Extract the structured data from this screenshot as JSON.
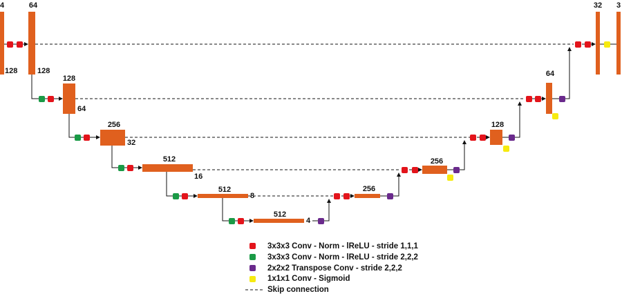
{
  "blocks": [
    {
      "channels": "4",
      "size": "128"
    },
    {
      "channels": "64",
      "size": "128"
    },
    {
      "channels": "128",
      "size": "64"
    },
    {
      "channels": "256",
      "size": "32"
    },
    {
      "channels": "512",
      "size": "16"
    },
    {
      "channels": "512",
      "size": "8"
    },
    {
      "channels": "512",
      "size": "4"
    },
    {
      "channels": "256"
    },
    {
      "channels": "256"
    },
    {
      "channels": "128"
    },
    {
      "channels": "64"
    },
    {
      "channels": "32"
    },
    {
      "channels": "3"
    }
  ],
  "legend": [
    "3x3x3 Conv - Norm - lReLU - stride 1,1,1",
    "3x3x3 Conv - Norm - lReLU - stride 2,2,2",
    "2x2x2 Transpose Conv - stride 2,2,2",
    "1x1x1 Conv - Sigmoid",
    "Skip connection"
  ]
}
